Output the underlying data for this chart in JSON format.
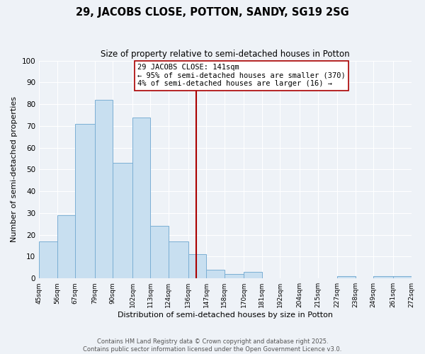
{
  "title": "29, JACOBS CLOSE, POTTON, SANDY, SG19 2SG",
  "subtitle": "Size of property relative to semi-detached houses in Potton",
  "xlabel": "Distribution of semi-detached houses by size in Potton",
  "ylabel": "Number of semi-detached properties",
  "bin_edges": [
    45,
    56,
    67,
    79,
    90,
    102,
    113,
    124,
    136,
    147,
    158,
    170,
    181,
    192,
    204,
    215,
    227,
    238,
    249,
    261,
    272
  ],
  "counts": [
    17,
    29,
    71,
    82,
    53,
    74,
    24,
    17,
    11,
    4,
    2,
    3,
    0,
    0,
    0,
    0,
    1,
    0,
    1,
    1
  ],
  "bar_color": "#c8dff0",
  "bar_edge_color": "#7bafd4",
  "property_size": 141,
  "vline_color": "#aa0000",
  "annotation_text": "29 JACOBS CLOSE: 141sqm\n← 95% of semi-detached houses are smaller (370)\n4% of semi-detached houses are larger (16) →",
  "annotation_box_color": "#ffffff",
  "annotation_box_edge_color": "#aa0000",
  "ylim": [
    0,
    100
  ],
  "tick_labels": [
    "45sqm",
    "56sqm",
    "67sqm",
    "79sqm",
    "90sqm",
    "102sqm",
    "113sqm",
    "124sqm",
    "136sqm",
    "147sqm",
    "158sqm",
    "170sqm",
    "181sqm",
    "192sqm",
    "204sqm",
    "215sqm",
    "227sqm",
    "238sqm",
    "249sqm",
    "261sqm",
    "272sqm"
  ],
  "footer_line1": "Contains HM Land Registry data © Crown copyright and database right 2025.",
  "footer_line2": "Contains public sector information licensed under the Open Government Licence v3.0.",
  "background_color": "#eef2f7",
  "grid_color": "#ffffff",
  "title_fontsize": 10.5,
  "subtitle_fontsize": 8.5,
  "ylabel_fontsize": 8,
  "xlabel_fontsize": 8,
  "tick_fontsize": 6.5,
  "ytick_fontsize": 7.5,
  "annotation_fontsize": 7.5,
  "footer_fontsize": 6
}
